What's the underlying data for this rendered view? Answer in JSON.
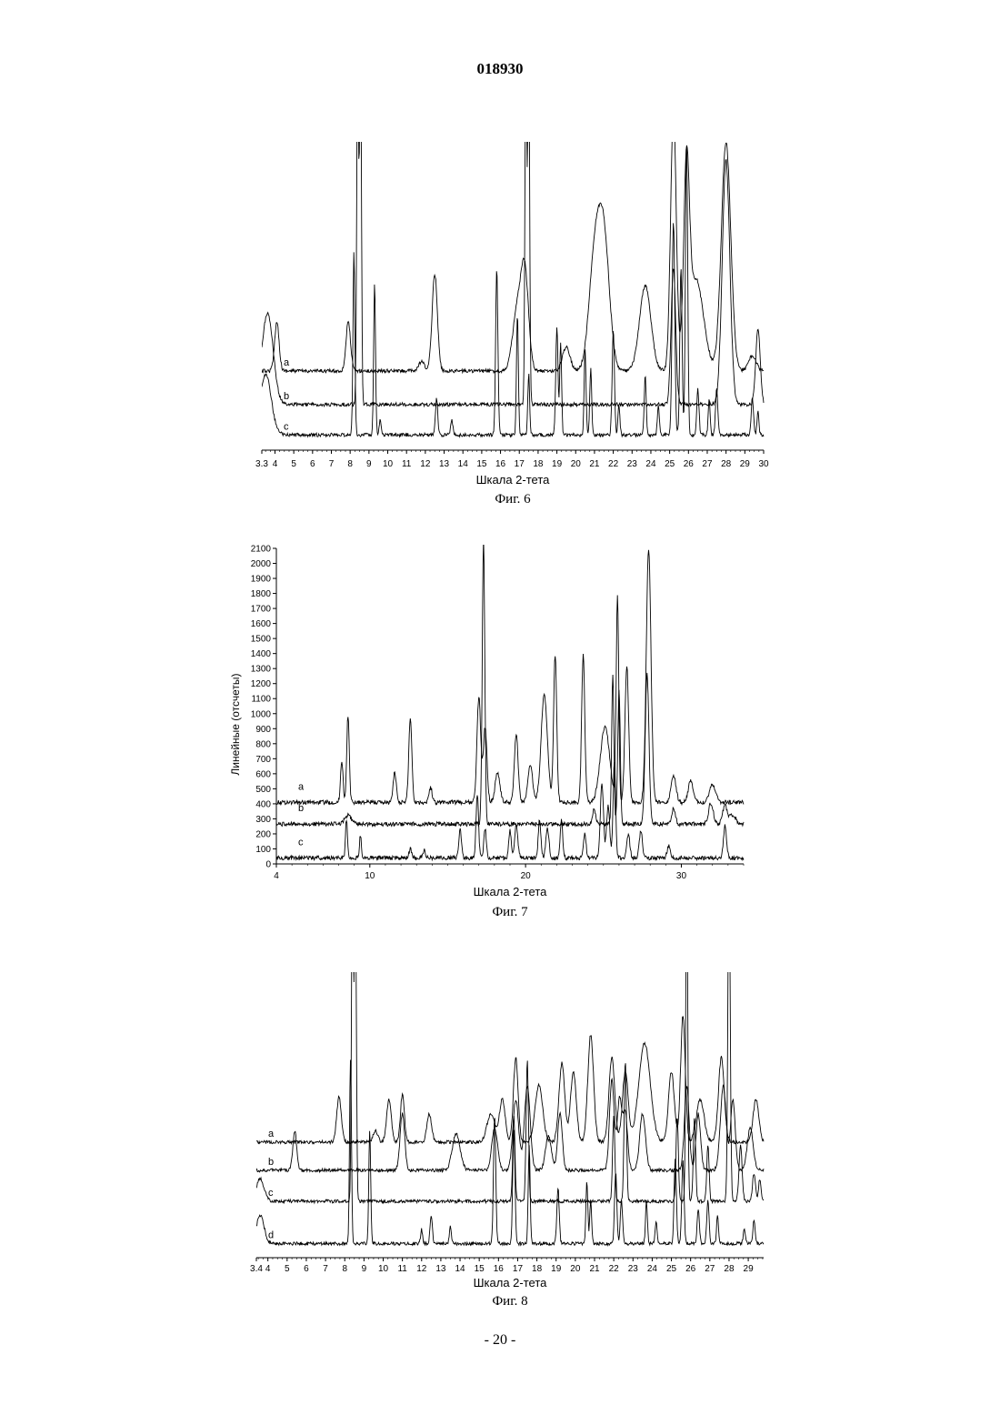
{
  "header": {
    "doc_number": "018930"
  },
  "footer": {
    "page_number": "- 20 -"
  },
  "chart_data": [
    {
      "type": "line",
      "caption": "Фиг. 6",
      "xlabel": "Шкала 2-тета",
      "ylabel": "",
      "xlim": [
        3.3,
        30
      ],
      "xticks": [
        "3.3",
        "4",
        "5",
        "6",
        "7",
        "8",
        "9",
        "10",
        "11",
        "12",
        "13",
        "14",
        "15",
        "16",
        "17",
        "18",
        "19",
        "20",
        "21",
        "22",
        "23",
        "24",
        "25",
        "26",
        "27",
        "28",
        "29",
        "30"
      ],
      "grid": false,
      "series": [
        {
          "name": "a",
          "baseline": 0.74,
          "peaks": [
            [
              4.1,
              0.16,
              0.12
            ],
            [
              7.9,
              0.16,
              0.12
            ],
            [
              11.8,
              0.03,
              0.15
            ],
            [
              12.5,
              0.32,
              0.14
            ],
            [
              16.9,
              0.2,
              0.25
            ],
            [
              17.3,
              0.3,
              0.2
            ],
            [
              19.5,
              0.08,
              0.2
            ],
            [
              21,
              0.35,
              0.3
            ],
            [
              21.5,
              0.42,
              0.3
            ],
            [
              23.7,
              0.28,
              0.3
            ],
            [
              25.2,
              0.85,
              0.15
            ],
            [
              25.9,
              0.6,
              0.15
            ],
            [
              26.4,
              0.3,
              0.4
            ],
            [
              28,
              0.75,
              0.25
            ],
            [
              29.4,
              0.05,
              0.2
            ]
          ]
        },
        {
          "name": "b",
          "baseline": 0.85,
          "peaks": [
            [
              3.6,
              0.3,
              0.3
            ],
            [
              8.4,
              1.2,
              0.05
            ],
            [
              8.55,
              1.2,
              0.05
            ],
            [
              17.35,
              1.2,
              0.05
            ],
            [
              17.5,
              1.2,
              0.05
            ],
            [
              25.2,
              0.45,
              0.12
            ],
            [
              28.0,
              0.8,
              0.2
            ],
            [
              29.7,
              0.25,
              0.12
            ]
          ]
        },
        {
          "name": "c",
          "baseline": 0.95,
          "peaks": [
            [
              3.5,
              0.2,
              0.3
            ],
            [
              8.2,
              0.6,
              0.05
            ],
            [
              9.3,
              0.5,
              0.05
            ],
            [
              9.6,
              0.05,
              0.05
            ],
            [
              12.6,
              0.12,
              0.06
            ],
            [
              13.4,
              0.05,
              0.06
            ],
            [
              15.8,
              0.55,
              0.06
            ],
            [
              16.9,
              0.4,
              0.05
            ],
            [
              17.5,
              0.2,
              0.05
            ],
            [
              19,
              0.35,
              0.06
            ],
            [
              19.2,
              0.3,
              0.05
            ],
            [
              20.5,
              0.28,
              0.05
            ],
            [
              20.8,
              0.22,
              0.05
            ],
            [
              22,
              0.35,
              0.06
            ],
            [
              22.3,
              0.1,
              0.05
            ],
            [
              23.7,
              0.2,
              0.05
            ],
            [
              24.4,
              0.1,
              0.05
            ],
            [
              25.2,
              0.7,
              0.07
            ],
            [
              25.6,
              0.55,
              0.06
            ],
            [
              25.9,
              0.95,
              0.06
            ],
            [
              26.5,
              0.15,
              0.06
            ],
            [
              27.1,
              0.12,
              0.05
            ],
            [
              27.5,
              0.15,
              0.06
            ],
            [
              29.4,
              0.12,
              0.06
            ],
            [
              29.7,
              0.08,
              0.05
            ]
          ]
        }
      ]
    },
    {
      "type": "line",
      "caption": "Фиг. 7",
      "xlabel": "Шкала 2-тета",
      "ylabel": "Линейные (отсчеты)",
      "xlim": [
        4,
        34
      ],
      "ylim": [
        0,
        2100
      ],
      "xticks": [
        "4",
        "10",
        "20",
        "30"
      ],
      "yticks": [
        "0",
        "100",
        "200",
        "300",
        "400",
        "500",
        "600",
        "700",
        "800",
        "900",
        "1000",
        "1100",
        "1200",
        "1300",
        "1400",
        "1500",
        "1600",
        "1700",
        "1800",
        "1900",
        "2000",
        "2100"
      ],
      "grid": false,
      "series": [
        {
          "name": "a",
          "baseline": 410,
          "peaks": [
            [
              8.2,
              280,
              0.08
            ],
            [
              8.6,
              580,
              0.08
            ],
            [
              11.6,
              200,
              0.1
            ],
            [
              12.6,
              560,
              0.1
            ],
            [
              13.9,
              100,
              0.1
            ],
            [
              17.0,
              700,
              0.12
            ],
            [
              17.4,
              500,
              0.12
            ],
            [
              18.2,
              200,
              0.15
            ],
            [
              19.4,
              450,
              0.12
            ],
            [
              20.3,
              250,
              0.15
            ],
            [
              21.2,
              720,
              0.2
            ],
            [
              21.9,
              980,
              0.1
            ],
            [
              23.7,
              980,
              0.1
            ],
            [
              25.1,
              500,
              0.3
            ],
            [
              25.9,
              1350,
              0.08
            ],
            [
              26.5,
              900,
              0.12
            ],
            [
              27.9,
              1690,
              0.15
            ],
            [
              29.5,
              180,
              0.15
            ],
            [
              30.6,
              150,
              0.15
            ],
            [
              32,
              120,
              0.2
            ]
          ]
        },
        {
          "name": "b",
          "baseline": 265,
          "peaks": [
            [
              8.6,
              60,
              0.2
            ],
            [
              17.3,
              1900,
              0.08
            ],
            [
              24.4,
              100,
              0.1
            ],
            [
              25.6,
              1000,
              0.07
            ],
            [
              26.0,
              900,
              0.08
            ],
            [
              27.8,
              1000,
              0.12
            ],
            [
              29.5,
              100,
              0.12
            ],
            [
              31.9,
              140,
              0.15
            ],
            [
              32.8,
              120,
              0.15
            ],
            [
              33.3,
              60,
              0.2
            ]
          ]
        },
        {
          "name": "c",
          "baseline": 40,
          "peaks": [
            [
              8.5,
              260,
              0.06
            ],
            [
              9.4,
              150,
              0.06
            ],
            [
              12.6,
              60,
              0.08
            ],
            [
              13.5,
              50,
              0.08
            ],
            [
              15.8,
              200,
              0.08
            ],
            [
              16.9,
              430,
              0.08
            ],
            [
              17.4,
              200,
              0.08
            ],
            [
              19,
              180,
              0.08
            ],
            [
              19.4,
              220,
              0.1
            ],
            [
              20.9,
              260,
              0.08
            ],
            [
              21.4,
              200,
              0.1
            ],
            [
              22.3,
              250,
              0.08
            ],
            [
              23.8,
              160,
              0.08
            ],
            [
              24.9,
              500,
              0.1
            ],
            [
              25.3,
              350,
              0.1
            ],
            [
              25.7,
              650,
              0.08
            ],
            [
              26.6,
              150,
              0.1
            ],
            [
              27.4,
              180,
              0.1
            ],
            [
              29.2,
              80,
              0.1
            ],
            [
              32.8,
              210,
              0.1
            ]
          ]
        }
      ]
    },
    {
      "type": "line",
      "caption": "Фиг. 8",
      "xlabel": "Шкала 2-тета",
      "ylabel": "",
      "xlim": [
        3.4,
        29.8
      ],
      "xticks": [
        "3.4",
        "4",
        "5",
        "6",
        "7",
        "8",
        "9",
        "10",
        "11",
        "12",
        "13",
        "14",
        "15",
        "16",
        "17",
        "18",
        "19",
        "20",
        "21",
        "22",
        "23",
        "24",
        "25",
        "26",
        "27",
        "28",
        "29"
      ],
      "grid": false,
      "series": [
        {
          "name": "a",
          "baseline": 0.59,
          "peaks": [
            [
              7.7,
              0.16,
              0.12
            ],
            [
              9.6,
              0.04,
              0.12
            ],
            [
              10.3,
              0.15,
              0.12
            ],
            [
              11,
              0.17,
              0.1
            ],
            [
              12.4,
              0.1,
              0.12
            ],
            [
              15.6,
              0.1,
              0.2
            ],
            [
              16.2,
              0.15,
              0.15
            ],
            [
              16.9,
              0.3,
              0.12
            ],
            [
              18.1,
              0.2,
              0.2
            ],
            [
              19.3,
              0.28,
              0.15
            ],
            [
              19.9,
              0.25,
              0.15
            ],
            [
              20.8,
              0.38,
              0.15
            ],
            [
              21.9,
              0.3,
              0.15
            ],
            [
              22.6,
              0.25,
              0.15
            ],
            [
              23.6,
              0.35,
              0.3
            ],
            [
              25,
              0.25,
              0.15
            ],
            [
              25.6,
              0.45,
              0.12
            ],
            [
              26.5,
              0.15,
              0.2
            ],
            [
              27.6,
              0.3,
              0.15
            ],
            [
              29.4,
              0.15,
              0.15
            ]
          ]
        },
        {
          "name": "b",
          "baseline": 0.69,
          "peaks": [
            [
              5.4,
              0.14,
              0.1
            ],
            [
              11.0,
              0.2,
              0.12
            ],
            [
              13.8,
              0.13,
              0.2
            ],
            [
              15.8,
              0.15,
              0.15
            ],
            [
              16.9,
              0.25,
              0.15
            ],
            [
              17.5,
              0.3,
              0.15
            ],
            [
              18.6,
              0.12,
              0.15
            ],
            [
              19.2,
              0.2,
              0.12
            ],
            [
              21.9,
              0.32,
              0.12
            ],
            [
              22.3,
              0.25,
              0.12
            ],
            [
              22.6,
              0.2,
              0.12
            ],
            [
              23.5,
              0.2,
              0.15
            ],
            [
              25.8,
              0.3,
              0.12
            ],
            [
              26.4,
              0.2,
              0.12
            ],
            [
              27.7,
              0.3,
              0.15
            ],
            [
              28.2,
              0.25,
              0.12
            ],
            [
              29.1,
              0.15,
              0.15
            ]
          ]
        },
        {
          "name": "c",
          "baseline": 0.8,
          "peaks": [
            [
              3.6,
              0.08,
              0.2
            ],
            [
              8.4,
              1.2,
              0.05
            ],
            [
              8.55,
              1.2,
              0.05
            ],
            [
              16.8,
              0.3,
              0.06
            ],
            [
              17.5,
              0.5,
              0.06
            ],
            [
              22.0,
              0.3,
              0.06
            ],
            [
              22.6,
              0.5,
              0.06
            ],
            [
              25.3,
              0.3,
              0.06
            ],
            [
              25.8,
              1.2,
              0.05
            ],
            [
              26.2,
              0.3,
              0.06
            ],
            [
              26.9,
              0.2,
              0.06
            ],
            [
              28.0,
              1.2,
              0.06
            ],
            [
              28.6,
              0.2,
              0.08
            ],
            [
              29.3,
              0.1,
              0.08
            ],
            [
              29.6,
              0.08,
              0.06
            ]
          ]
        },
        {
          "name": "d",
          "baseline": 0.95,
          "peaks": [
            [
              3.6,
              0.1,
              0.2
            ],
            [
              8.3,
              0.65,
              0.05
            ],
            [
              9.3,
              0.4,
              0.05
            ],
            [
              12.0,
              0.05,
              0.05
            ],
            [
              12.5,
              0.1,
              0.06
            ],
            [
              13.5,
              0.06,
              0.05
            ],
            [
              15.8,
              0.45,
              0.06
            ],
            [
              16.8,
              0.4,
              0.06
            ],
            [
              17.6,
              0.35,
              0.05
            ],
            [
              19.1,
              0.2,
              0.06
            ],
            [
              20.6,
              0.22,
              0.05
            ],
            [
              20.8,
              0.15,
              0.05
            ],
            [
              22.1,
              0.25,
              0.06
            ],
            [
              22.4,
              0.15,
              0.06
            ],
            [
              23.7,
              0.15,
              0.05
            ],
            [
              24.2,
              0.08,
              0.05
            ],
            [
              25.2,
              0.3,
              0.06
            ],
            [
              25.6,
              0.3,
              0.06
            ],
            [
              26.4,
              0.12,
              0.06
            ],
            [
              26.9,
              0.15,
              0.06
            ],
            [
              27.4,
              0.1,
              0.05
            ],
            [
              28.8,
              0.05,
              0.06
            ],
            [
              29.3,
              0.08,
              0.06
            ]
          ]
        }
      ]
    }
  ]
}
